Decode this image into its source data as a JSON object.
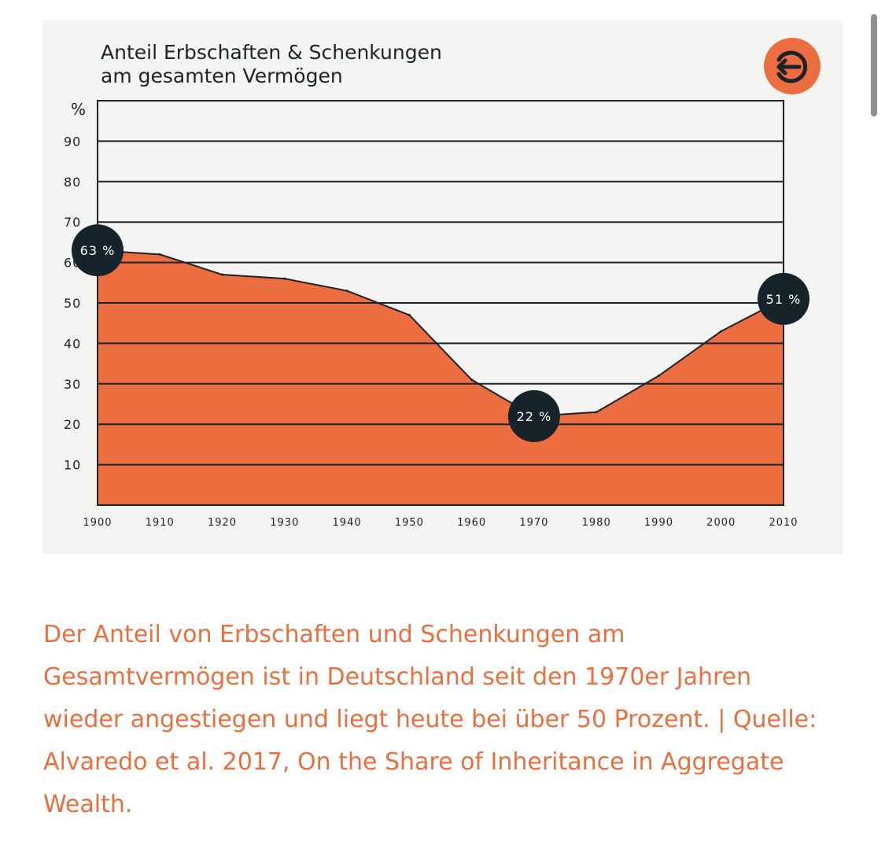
{
  "chart_data": {
    "type": "area",
    "title_lines": [
      "Anteil Erbschaften & Schenkungen",
      "am gesamten Vermögen"
    ],
    "ylabel": "%",
    "xlabel": "",
    "x": [
      1900,
      1910,
      1920,
      1930,
      1940,
      1950,
      1960,
      1970,
      1980,
      1990,
      2000,
      2010
    ],
    "series": [
      {
        "name": "Anteil Erbschaften & Schenkungen am gesamten Vermögen",
        "values": [
          63,
          62,
          57,
          56,
          53,
          47,
          31,
          22,
          23,
          32,
          43,
          51
        ]
      }
    ],
    "ylim": [
      0,
      100
    ],
    "y_ticks": [
      10,
      20,
      30,
      40,
      50,
      60,
      70,
      80,
      90
    ],
    "x_ticks": [
      "1900",
      "1910",
      "1920",
      "1930",
      "1940",
      "1950",
      "1960",
      "1970",
      "1980",
      "1990",
      "2000",
      "2010"
    ],
    "grid": true,
    "annotations": [
      {
        "x": 1900,
        "y": 63,
        "label": "63 %"
      },
      {
        "x": 1970,
        "y": 22,
        "label": "22 %"
      },
      {
        "x": 2010,
        "y": 51,
        "label": "51 %"
      }
    ],
    "colors": {
      "fill": "#ec6d3f",
      "line": "#1b2329",
      "grid": "#1b2329",
      "callout_bg": "#17232a",
      "card_bg": "#f4f4f2",
      "logo_bg": "#ec6d3f"
    }
  },
  "logo": {
    "icon": "g-arrow-logo-icon"
  },
  "caption": {
    "text": "Der Anteil von Erbschaften und Schenkungen am Gesamtvermögen ist in Deutschland seit den 1970er Jahren wieder angestiegen und liegt heute bei über 50 Prozent. | Quelle: Alvaredo et al. 2017, On the Share of Inheritance in Aggregate Wealth."
  }
}
